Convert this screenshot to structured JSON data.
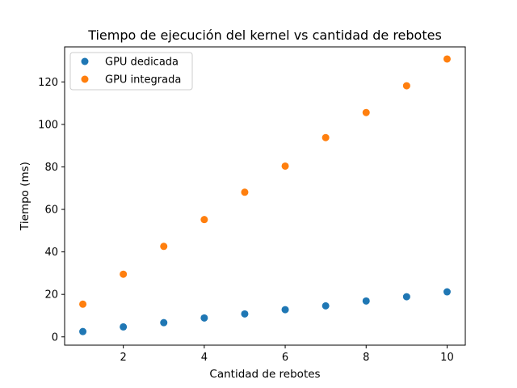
{
  "chart_data": {
    "type": "scatter",
    "title": "Tiempo de ejecución del kernel vs cantidad de rebotes",
    "xlabel": "Cantidad de rebotes",
    "ylabel": "Tiempo (ms)",
    "x": [
      1,
      2,
      3,
      4,
      5,
      6,
      7,
      8,
      9,
      10
    ],
    "xlim": [
      0.55,
      10.45
    ],
    "ylim": [
      -3.9,
      136.5
    ],
    "xticks": [
      2,
      4,
      6,
      8,
      10
    ],
    "yticks": [
      0,
      20,
      40,
      60,
      80,
      100,
      120
    ],
    "grid": false,
    "legend_position": "upper-left",
    "series": [
      {
        "name": "GPU dedicada",
        "color": "#1f77b4",
        "values": [
          2.5,
          4.7,
          6.7,
          8.9,
          10.8,
          12.8,
          14.6,
          16.9,
          18.9,
          21.2
        ]
      },
      {
        "name": "GPU integrada",
        "color": "#ff7f0e",
        "values": [
          15.4,
          29.5,
          42.6,
          55.2,
          68.1,
          80.4,
          93.8,
          105.6,
          118.2,
          130.8
        ]
      }
    ]
  }
}
